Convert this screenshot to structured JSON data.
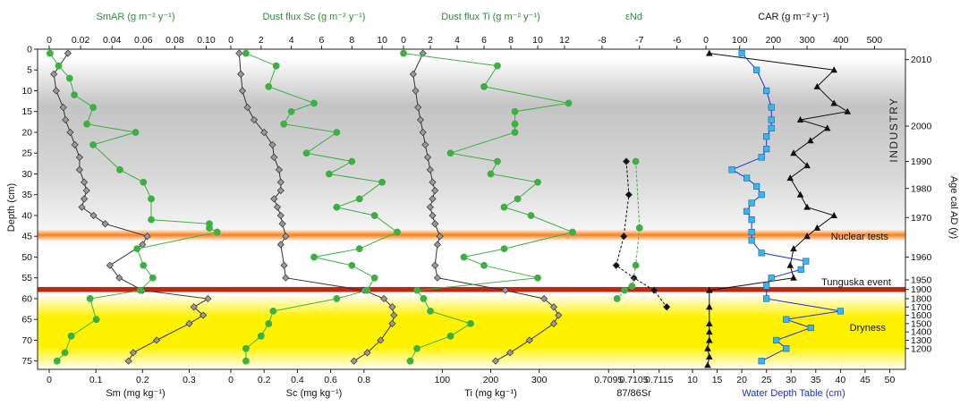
{
  "colors": {
    "green": "#3cb043",
    "green_dark": "#2e8b3a",
    "gray_marker": "#9a9a9a",
    "black": "#111111",
    "blue": "#1f2fd0",
    "cyan": "#35b8f0",
    "nuclear_band": "#f58220",
    "tunguska_band": "#c1260f",
    "dryness_band": "#fff200",
    "industry_band": "#bdbdbd"
  },
  "axes": {
    "depth_label": "Depth (cm)",
    "depth_ticks": [
      0,
      5,
      10,
      15,
      20,
      25,
      30,
      35,
      40,
      45,
      50,
      55,
      60,
      65,
      70,
      75
    ],
    "age_label": "Age cal AD (y)",
    "age_ticks": [
      {
        "label": "2010",
        "depth": 2.5
      },
      {
        "label": "2000",
        "depth": 18.5
      },
      {
        "label": "1990",
        "depth": 27.0
      },
      {
        "label": "1980",
        "depth": 33.5
      },
      {
        "label": "1970",
        "depth": 40.5
      },
      {
        "label": "1960",
        "depth": 50.0
      },
      {
        "label": "1950",
        "depth": 55.5
      },
      {
        "label": "1900",
        "depth": 57.8
      },
      {
        "label": "1800",
        "depth": 60.0
      },
      {
        "label": "1700",
        "depth": 62.0
      },
      {
        "label": "1600",
        "depth": 64.0
      },
      {
        "label": "1500",
        "depth": 66.0
      },
      {
        "label": "1400",
        "depth": 68.0
      },
      {
        "label": "1300",
        "depth": 70.0
      },
      {
        "label": "1200",
        "depth": 72.0
      }
    ]
  },
  "labels": {
    "industry": "INDUSTRY",
    "nuclear": "Nuclear tests",
    "tunguska": "Tunguska event",
    "dryness": "Dryness"
  },
  "chart_data": {
    "type": "line",
    "bands": [
      {
        "name": "industry",
        "from": 2,
        "to": 48
      },
      {
        "name": "nuclear",
        "from": 43.2,
        "to": 46.2
      },
      {
        "name": "tunguska",
        "from": 57.2,
        "to": 58.4
      },
      {
        "name": "dryness",
        "from": 59,
        "to": 77
      }
    ],
    "panels": [
      {
        "id": "sm",
        "top_title": "SmAR  (g m⁻² y⁻¹)",
        "top_ticks": [
          "0",
          "0.02",
          "0.04",
          "0.06",
          "0.08",
          "0.10"
        ],
        "top_range": [
          0,
          0.11
        ],
        "bottom_label": "Sm (mg kg⁻¹)",
        "bottom_ticks": [
          "0",
          "0.1",
          "0.2",
          "0.3"
        ],
        "bottom_range": [
          0,
          0.37
        ],
        "green_series": [
          [
            0.0005,
            1
          ],
          [
            0.006,
            4
          ],
          [
            0.013,
            7
          ],
          [
            0.016,
            11
          ],
          [
            0.028,
            14
          ],
          [
            0.024,
            18
          ],
          [
            0.055,
            20
          ],
          [
            0.028,
            23
          ],
          [
            0.045,
            29
          ],
          [
            0.06,
            32
          ],
          [
            0.065,
            36
          ],
          [
            0.065,
            41
          ],
          [
            0.102,
            42
          ],
          [
            0.102,
            43
          ],
          [
            0.107,
            44
          ],
          [
            0.056,
            48
          ],
          [
            0.06,
            52
          ],
          [
            0.066,
            55
          ],
          [
            0.058,
            58
          ],
          [
            0.026,
            60
          ],
          [
            0.03,
            65
          ],
          [
            0.014,
            69
          ],
          [
            0.01,
            73
          ],
          [
            0.005,
            75
          ]
        ],
        "gray_series": [
          [
            0.04,
            1
          ],
          [
            0.01,
            6
          ],
          [
            0.015,
            10
          ],
          [
            0.03,
            14
          ],
          [
            0.035,
            17
          ],
          [
            0.045,
            20
          ],
          [
            0.055,
            23
          ],
          [
            0.065,
            26
          ],
          [
            0.065,
            29
          ],
          [
            0.075,
            32
          ],
          [
            0.08,
            34
          ],
          [
            0.075,
            36
          ],
          [
            0.07,
            38
          ],
          [
            0.095,
            40
          ],
          [
            0.12,
            42
          ],
          [
            0.21,
            45
          ],
          [
            0.2,
            47
          ],
          [
            0.13,
            52
          ],
          [
            0.15,
            55
          ],
          [
            0.2,
            58
          ],
          [
            0.34,
            60
          ],
          [
            0.31,
            62
          ],
          [
            0.33,
            64
          ],
          [
            0.3,
            66
          ],
          [
            0.23,
            70
          ],
          [
            0.18,
            73
          ],
          [
            0.17,
            75
          ]
        ]
      },
      {
        "id": "sc",
        "top_title": "Dust flux Sc  (g m⁻² y⁻¹)",
        "top_ticks": [
          "0",
          "2",
          "4",
          "6",
          "8",
          "10"
        ],
        "top_range": [
          0,
          11
        ],
        "bottom_label": "Sc (mg kg⁻¹)",
        "bottom_ticks": [
          "0",
          "0.2",
          "0.4",
          "0.6",
          "0.8"
        ],
        "bottom_range": [
          0,
          1.0
        ],
        "green_series": [
          [
            1,
            1
          ],
          [
            3,
            4
          ],
          [
            2.5,
            9
          ],
          [
            5.5,
            13
          ],
          [
            4,
            15
          ],
          [
            3.5,
            18
          ],
          [
            7,
            20
          ],
          [
            5,
            25
          ],
          [
            8,
            27
          ],
          [
            6.5,
            30
          ],
          [
            10,
            32
          ],
          [
            8.5,
            36
          ],
          [
            7,
            38
          ],
          [
            9.5,
            40
          ],
          [
            11,
            44
          ],
          [
            8.5,
            48
          ],
          [
            5.5,
            50
          ],
          [
            8,
            52
          ],
          [
            9.5,
            55
          ],
          [
            9,
            58
          ],
          [
            7,
            60
          ],
          [
            2.8,
            63
          ],
          [
            2.5,
            66
          ],
          [
            2,
            69
          ],
          [
            1,
            72
          ],
          [
            1,
            75
          ]
        ],
        "gray_series": [
          [
            0.05,
            1
          ],
          [
            0.06,
            6
          ],
          [
            0.07,
            10
          ],
          [
            0.1,
            14
          ],
          [
            0.14,
            17
          ],
          [
            0.2,
            20
          ],
          [
            0.25,
            23
          ],
          [
            0.26,
            26
          ],
          [
            0.29,
            29
          ],
          [
            0.3,
            32
          ],
          [
            0.3,
            34
          ],
          [
            0.26,
            36
          ],
          [
            0.28,
            38
          ],
          [
            0.3,
            40
          ],
          [
            0.31,
            42
          ],
          [
            0.33,
            45
          ],
          [
            0.3,
            47
          ],
          [
            0.32,
            52
          ],
          [
            0.33,
            55
          ],
          [
            0.8,
            58
          ],
          [
            0.92,
            60
          ],
          [
            0.97,
            62
          ],
          [
            0.98,
            64
          ],
          [
            0.97,
            66
          ],
          [
            0.9,
            70
          ],
          [
            0.82,
            73
          ],
          [
            0.74,
            75
          ]
        ]
      },
      {
        "id": "ti",
        "top_title": "Dust flux Ti  (g m⁻² y⁻¹)",
        "top_ticks": [
          "0",
          "2",
          "4",
          "6",
          "8",
          "10",
          "12"
        ],
        "top_range": [
          0,
          13
        ],
        "bottom_label": "Ti (mg kg⁻¹)",
        "bottom_ticks": [
          "100",
          "200",
          "300"
        ],
        "bottom_range": [
          20,
          380
        ],
        "green_series": [
          [
            0,
            1
          ],
          [
            7,
            4
          ],
          [
            6,
            9
          ],
          [
            12.3,
            13
          ],
          [
            8.3,
            15
          ],
          [
            8.3,
            18
          ],
          [
            8.3,
            20
          ],
          [
            3.5,
            25
          ],
          [
            7,
            27
          ],
          [
            6.5,
            30
          ],
          [
            10,
            32
          ],
          [
            8.5,
            36
          ],
          [
            7.5,
            38
          ],
          [
            9.5,
            40
          ],
          [
            12.6,
            44
          ],
          [
            7.5,
            48
          ],
          [
            4.5,
            50
          ],
          [
            6,
            52
          ],
          [
            10,
            55
          ],
          [
            1,
            58
          ],
          [
            1.5,
            60
          ],
          [
            2,
            63
          ],
          [
            5,
            66
          ],
          [
            3.5,
            69
          ],
          [
            1,
            72
          ],
          [
            0.5,
            75
          ]
        ],
        "gray_series": [
          [
            60,
            1
          ],
          [
            40,
            6
          ],
          [
            45,
            10
          ],
          [
            50,
            14
          ],
          [
            55,
            17
          ],
          [
            60,
            20
          ],
          [
            65,
            23
          ],
          [
            70,
            26
          ],
          [
            75,
            29
          ],
          [
            80,
            32
          ],
          [
            85,
            34
          ],
          [
            80,
            36
          ],
          [
            75,
            38
          ],
          [
            80,
            40
          ],
          [
            85,
            42
          ],
          [
            95,
            45
          ],
          [
            90,
            47
          ],
          [
            85,
            52
          ],
          [
            90,
            55
          ],
          [
            230,
            58
          ],
          [
            310,
            60
          ],
          [
            330,
            62
          ],
          [
            340,
            64
          ],
          [
            330,
            66
          ],
          [
            280,
            70
          ],
          [
            240,
            73
          ],
          [
            210,
            75
          ]
        ]
      },
      {
        "id": "isotope",
        "top_title": "εNd",
        "top_ticks": [
          "-8",
          "-7",
          "-6"
        ],
        "top_range": [
          -8.5,
          -5.8
        ],
        "bottom_label": "87/86Sr",
        "bottom_ticks": [
          "0.7095",
          "0.7105",
          "0.7115"
        ],
        "bottom_range": [
          0.7085,
          0.7125
        ],
        "green_series": [
          [
            -7.1,
            27
          ],
          [
            -7.0,
            43
          ],
          [
            -7.1,
            52
          ],
          [
            -7.2,
            57
          ],
          [
            -7.4,
            58
          ],
          [
            -7.6,
            60
          ]
        ],
        "black_series": [
          [
            0.7102,
            27
          ],
          [
            0.7103,
            35
          ],
          [
            0.7101,
            45
          ],
          [
            0.7098,
            52
          ],
          [
            0.7105,
            55
          ],
          [
            0.7113,
            58
          ],
          [
            0.7118,
            62
          ]
        ]
      },
      {
        "id": "car",
        "top_title": "CAR (g m⁻² y⁻¹)",
        "top_ticks": [
          "0",
          "100",
          "200",
          "300",
          "400",
          "500"
        ],
        "top_range": [
          -40,
          560
        ],
        "bottom_label": "Water Depth Table (cm)",
        "bottom_ticks": [
          "10",
          "15",
          "20",
          "25",
          "30",
          "35",
          "40",
          "45",
          "50"
        ],
        "bottom_range": [
          10,
          51
        ],
        "car_series": [
          [
            10,
            1
          ],
          [
            380,
            5
          ],
          [
            330,
            9
          ],
          [
            380,
            13
          ],
          [
            420,
            15
          ],
          [
            280,
            17
          ],
          [
            360,
            19
          ],
          [
            310,
            22
          ],
          [
            260,
            25
          ],
          [
            300,
            28
          ],
          [
            250,
            31
          ],
          [
            280,
            35
          ],
          [
            300,
            38
          ],
          [
            380,
            40
          ],
          [
            330,
            43
          ],
          [
            300,
            45
          ],
          [
            260,
            48
          ],
          [
            250,
            52
          ],
          [
            260,
            55
          ],
          [
            10,
            58
          ],
          [
            10,
            62
          ],
          [
            10,
            66
          ],
          [
            10,
            68
          ],
          [
            10,
            70
          ],
          [
            5,
            72
          ],
          [
            10,
            74
          ],
          [
            5,
            76
          ]
        ],
        "water_series": [
          [
            20,
            1
          ],
          [
            23,
            5
          ],
          [
            25,
            10
          ],
          [
            26,
            14
          ],
          [
            26,
            17
          ],
          [
            26,
            19
          ],
          [
            25,
            21
          ],
          [
            25,
            24
          ],
          [
            24,
            26
          ],
          [
            18,
            29
          ],
          [
            21,
            31
          ],
          [
            23,
            33
          ],
          [
            24,
            35
          ],
          [
            22,
            37
          ],
          [
            21,
            39
          ],
          [
            22,
            41
          ],
          [
            22,
            44
          ],
          [
            22,
            46
          ],
          [
            24,
            49
          ],
          [
            33,
            51
          ],
          [
            32,
            53
          ],
          [
            26,
            55
          ],
          [
            25,
            57
          ],
          [
            25,
            60
          ],
          [
            40,
            63
          ],
          [
            29,
            65
          ],
          [
            34,
            67
          ],
          [
            27,
            70
          ],
          [
            29,
            72
          ],
          [
            24,
            75
          ]
        ]
      }
    ]
  }
}
